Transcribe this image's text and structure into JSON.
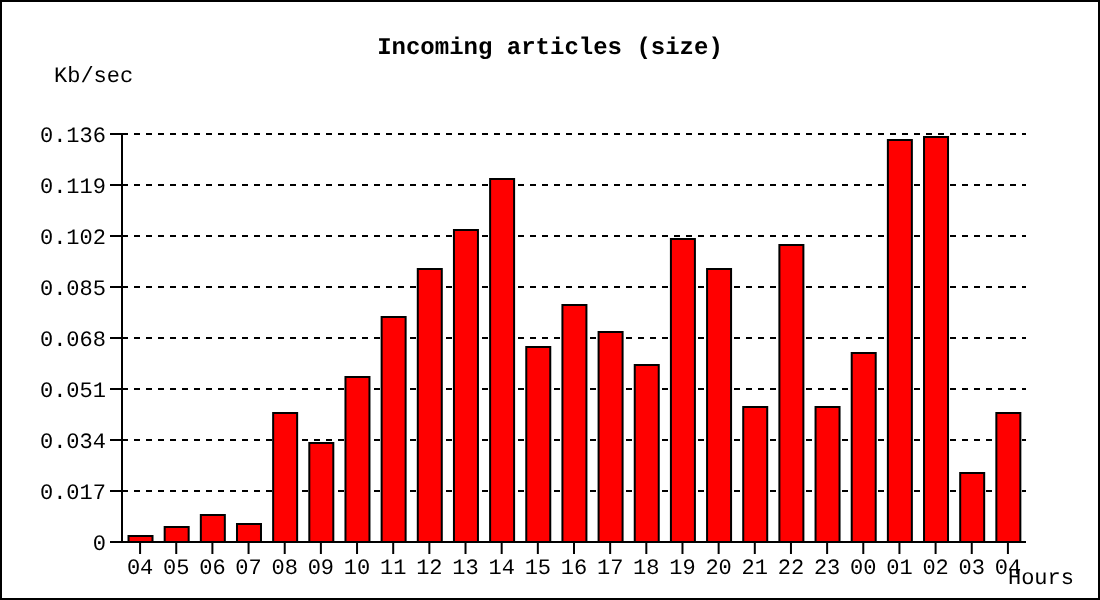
{
  "chart_data": {
    "type": "bar",
    "title": "Incoming articles (size)",
    "ylabel": "Kb/sec",
    "xlabel": "Hours",
    "categories": [
      "04",
      "05",
      "06",
      "07",
      "08",
      "09",
      "10",
      "11",
      "12",
      "13",
      "14",
      "15",
      "16",
      "17",
      "18",
      "19",
      "20",
      "21",
      "22",
      "23",
      "00",
      "01",
      "02",
      "03",
      "04"
    ],
    "values": [
      0.002,
      0.005,
      0.009,
      0.006,
      0.043,
      0.033,
      0.055,
      0.075,
      0.091,
      0.104,
      0.121,
      0.065,
      0.079,
      0.07,
      0.059,
      0.101,
      0.091,
      0.045,
      0.099,
      0.045,
      0.063,
      0.134,
      0.135,
      0.023,
      0.043
    ],
    "color": "#ff0000",
    "ylim": [
      0,
      0.136
    ],
    "yticks": [
      0,
      0.017,
      0.034,
      0.051,
      0.068,
      0.085,
      0.102,
      0.119,
      0.136
    ],
    "grid": "y"
  }
}
